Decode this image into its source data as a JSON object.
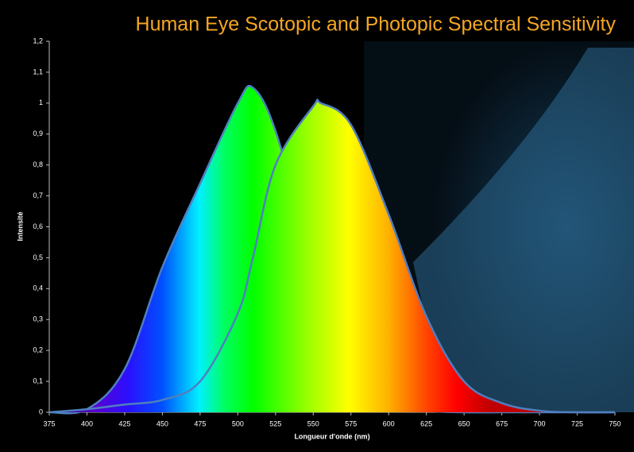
{
  "chart_data": {
    "type": "area",
    "title": "Human Eye Scotopic and Photopic Spectral Sensitivity",
    "x_label": "Longueur d'onde (nm)",
    "y_label": "Intensité",
    "x": [
      375,
      400,
      425,
      450,
      475,
      500,
      510,
      525,
      550,
      555,
      575,
      600,
      625,
      650,
      675,
      700,
      725,
      750
    ],
    "series": [
      {
        "color": "#4f7fc0",
        "values": [
          0,
          0.01,
          0.14,
          0.47,
          0.74,
          1.0,
          1.05,
          0.91,
          0.48,
          0.4,
          0.14,
          0.03,
          0.005,
          0,
          0,
          0,
          0,
          0
        ]
      },
      {
        "color": "#4f7fc0",
        "values": [
          0,
          0.01,
          0.025,
          0.04,
          0.1,
          0.32,
          0.5,
          0.8,
          0.99,
          1.0,
          0.93,
          0.64,
          0.31,
          0.1,
          0.03,
          0.005,
          0,
          0
        ]
      }
    ],
    "xlim": [
      375,
      750
    ],
    "ylim": [
      0,
      1.2
    ],
    "xticks": [
      375,
      400,
      425,
      450,
      475,
      500,
      525,
      550,
      575,
      600,
      625,
      650,
      675,
      700,
      725,
      750
    ],
    "yticks": [
      0,
      {
        "value": 0.1,
        "label": "0,1"
      },
      {
        "value": 0.2,
        "label": "0,2"
      },
      {
        "value": 0.3,
        "label": "0,3"
      },
      {
        "value": 0.4,
        "label": "0,4"
      },
      {
        "value": 0.5,
        "label": "0,5"
      },
      {
        "value": 0.6,
        "label": "0,6"
      },
      {
        "value": 0.7,
        "label": "0,7"
      },
      {
        "value": 0.8,
        "label": "0,8"
      },
      {
        "value": 0.9,
        "label": "0,9"
      },
      1,
      {
        "value": 1.1,
        "label": "1,1"
      },
      {
        "value": 1.2,
        "label": "1,2"
      }
    ],
    "grid": false
  }
}
